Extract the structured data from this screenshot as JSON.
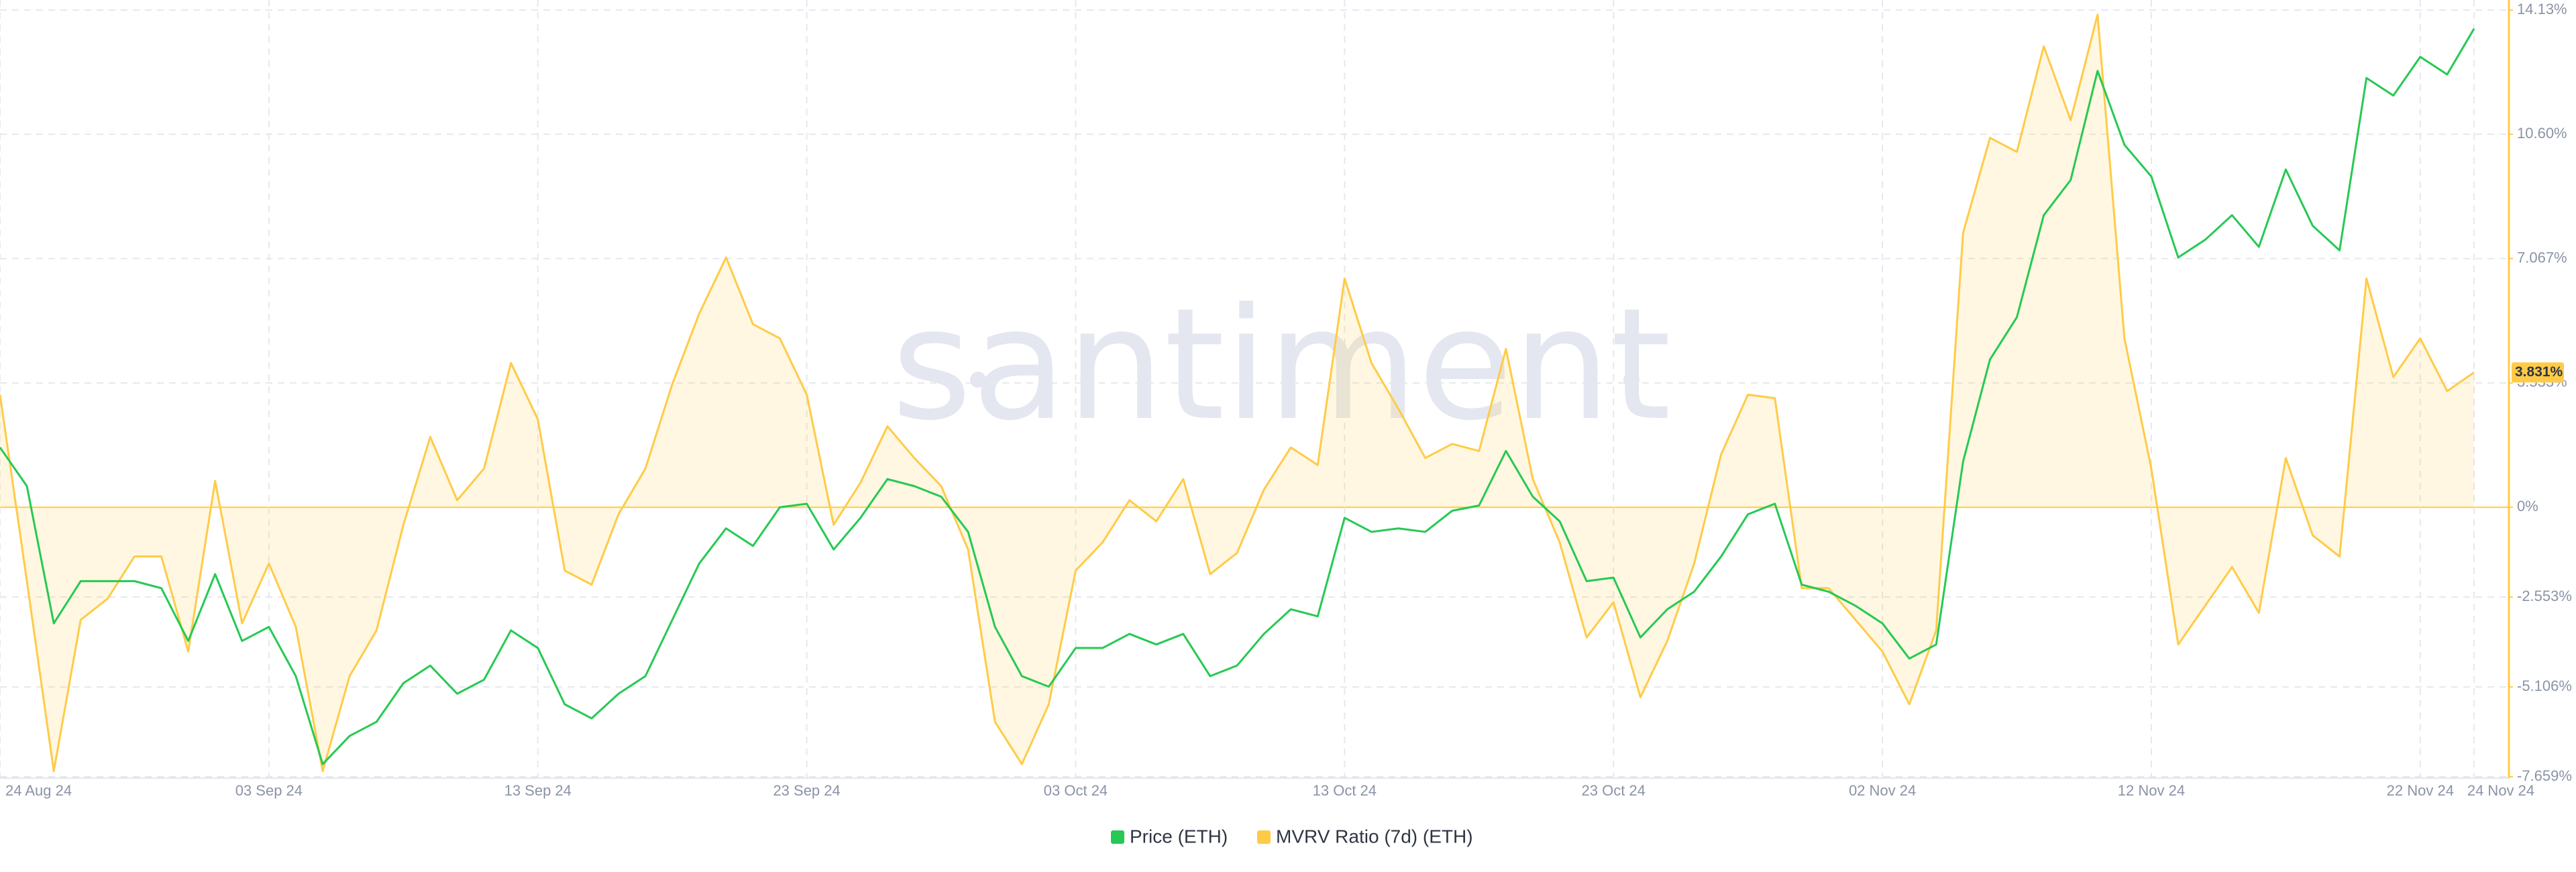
{
  "chart_data": {
    "type": "line",
    "watermark": "santiment",
    "x": [
      "2024-08-24",
      "2024-08-25",
      "2024-08-26",
      "2024-08-27",
      "2024-08-28",
      "2024-08-29",
      "2024-08-30",
      "2024-08-31",
      "2024-09-01",
      "2024-09-02",
      "2024-09-03",
      "2024-09-04",
      "2024-09-05",
      "2024-09-06",
      "2024-09-07",
      "2024-09-08",
      "2024-09-09",
      "2024-09-10",
      "2024-09-11",
      "2024-09-12",
      "2024-09-13",
      "2024-09-14",
      "2024-09-15",
      "2024-09-16",
      "2024-09-17",
      "2024-09-18",
      "2024-09-19",
      "2024-09-20",
      "2024-09-21",
      "2024-09-22",
      "2024-09-23",
      "2024-09-24",
      "2024-09-25",
      "2024-09-26",
      "2024-09-27",
      "2024-09-28",
      "2024-09-29",
      "2024-09-30",
      "2024-10-01",
      "2024-10-02",
      "2024-10-03",
      "2024-10-04",
      "2024-10-05",
      "2024-10-06",
      "2024-10-07",
      "2024-10-08",
      "2024-10-09",
      "2024-10-10",
      "2024-10-11",
      "2024-10-12",
      "2024-10-13",
      "2024-10-14",
      "2024-10-15",
      "2024-10-16",
      "2024-10-17",
      "2024-10-18",
      "2024-10-19",
      "2024-10-20",
      "2024-10-21",
      "2024-10-22",
      "2024-10-23",
      "2024-10-24",
      "2024-10-25",
      "2024-10-26",
      "2024-10-27",
      "2024-10-28",
      "2024-10-29",
      "2024-10-30",
      "2024-10-31",
      "2024-11-01",
      "2024-11-02",
      "2024-11-03",
      "2024-11-04",
      "2024-11-05",
      "2024-11-06",
      "2024-11-07",
      "2024-11-08",
      "2024-11-09",
      "2024-11-10",
      "2024-11-11",
      "2024-11-12",
      "2024-11-13",
      "2024-11-14",
      "2024-11-15",
      "2024-11-16",
      "2024-11-17",
      "2024-11-18",
      "2024-11-19",
      "2024-11-20",
      "2024-11-21",
      "2024-11-22",
      "2024-11-23",
      "2024-11-24"
    ],
    "series": [
      {
        "name": "Price (ETH)",
        "color": "#26c953",
        "values": [
          1.7,
          0.6,
          -3.3,
          -2.1,
          -2.1,
          -2.1,
          -2.3,
          -3.8,
          -1.9,
          -3.8,
          -3.4,
          -4.8,
          -7.3,
          -6.5,
          -6.1,
          -5.0,
          -4.5,
          -5.3,
          -4.9,
          -3.5,
          -4.0,
          -5.6,
          -6.0,
          -5.3,
          -4.8,
          -3.2,
          -1.6,
          -0.6,
          -1.1,
          0,
          0.1,
          -1.2,
          -0.3,
          0.8,
          0.6,
          0.3,
          -0.7,
          -3.4,
          -4.8,
          -5.1,
          -4.0,
          -4.0,
          -3.6,
          -3.9,
          -3.6,
          -4.8,
          -4.5,
          -3.6,
          -2.9,
          -3.1,
          -0.3,
          -0.7,
          -0.6,
          -0.7,
          -0.1,
          0.05,
          1.6,
          0.3,
          -0.4,
          -2.1,
          -2.0,
          -3.7,
          -2.9,
          -2.4,
          -1.4,
          -0.2,
          0.1,
          -2.2,
          -2.4,
          -2.8,
          -3.3,
          -4.3,
          -3.9,
          1.3,
          4.2,
          5.4,
          8.3,
          9.3,
          12.4,
          10.3,
          9.4,
          7.1,
          7.6,
          8.3,
          7.4,
          9.6,
          8.0,
          7.3,
          12.2,
          11.7,
          12.8,
          12.3,
          13.6
        ]
      },
      {
        "name": "MVRV Ratio (7d) (ETH)",
        "color": "#ffcb47",
        "values": [
          3.2,
          -2.1,
          -7.5,
          -3.2,
          -2.6,
          -1.4,
          -1.4,
          -4.1,
          0.75,
          -3.3,
          -1.6,
          -3.4,
          -7.5,
          -4.8,
          -3.5,
          -0.5,
          2.0,
          0.2,
          1.1,
          4.1,
          2.5,
          -1.8,
          -2.2,
          -0.2,
          1.1,
          3.5,
          5.5,
          7.1,
          5.2,
          4.8,
          3.2,
          -0.5,
          0.7,
          2.3,
          1.4,
          0.6,
          -1.2,
          -6.1,
          -7.3,
          -5.6,
          -1.8,
          -1.0,
          0.2,
          -0.4,
          0.8,
          -1.9,
          -1.3,
          0.5,
          1.7,
          1.2,
          6.5,
          4.1,
          2.8,
          1.4,
          1.8,
          1.6,
          4.5,
          0.8,
          -1.0,
          -3.7,
          -2.7,
          -5.4,
          -3.8,
          -1.6,
          1.5,
          3.2,
          3.1,
          -2.3,
          -2.3,
          -3.2,
          -4.1,
          -5.6,
          -3.5,
          7.8,
          10.5,
          10.1,
          13.1,
          11.0,
          14.0,
          4.8,
          1.1,
          -3.9,
          -2.8,
          -1.7,
          -3.0,
          1.4,
          -0.8,
          -1.4,
          6.5,
          3.7,
          4.8,
          3.3,
          3.831
        ],
        "value_labels": [
          null,
          null,
          null,
          null,
          null,
          null,
          null,
          null,
          null,
          null,
          null,
          null,
          null,
          null,
          null,
          null,
          null,
          null,
          null,
          null,
          null,
          null,
          null,
          null,
          null,
          null,
          null,
          null,
          null,
          null,
          null,
          null,
          null,
          null,
          null,
          null,
          null,
          null,
          null,
          null,
          null,
          null,
          null,
          null,
          null,
          null,
          null,
          null,
          null,
          null,
          null,
          null,
          null,
          null,
          null,
          null,
          null,
          null,
          null,
          null,
          null,
          null,
          null,
          null,
          null,
          null,
          null,
          null,
          null,
          null,
          null,
          null,
          null,
          null,
          null,
          null,
          null,
          null,
          null,
          null,
          null,
          null,
          null,
          null,
          null,
          null,
          null,
          null,
          null,
          null,
          null,
          null,
          "3.831%"
        ],
        "area": true
      }
    ],
    "xticks": [
      {
        "value": "2024-08-24",
        "label": "24 Aug 24"
      },
      {
        "value": "2024-09-03",
        "label": "03 Sep 24"
      },
      {
        "value": "2024-09-13",
        "label": "13 Sep 24"
      },
      {
        "value": "2024-09-23",
        "label": "23 Sep 24"
      },
      {
        "value": "2024-10-03",
        "label": "03 Oct 24"
      },
      {
        "value": "2024-10-13",
        "label": "13 Oct 24"
      },
      {
        "value": "2024-10-23",
        "label": "23 Oct 24"
      },
      {
        "value": "2024-11-02",
        "label": "02 Nov 24"
      },
      {
        "value": "2024-11-12",
        "label": "12 Nov 24"
      },
      {
        "value": "2024-11-22",
        "label": "22 Nov 24"
      },
      {
        "value": "2024-11-24",
        "label": "24 Nov 24"
      }
    ],
    "ylim": [
      -7.659,
      14.13
    ],
    "yticks": [
      {
        "value": 14.13,
        "label": "14.13%"
      },
      {
        "value": 10.6,
        "label": "10.60%"
      },
      {
        "value": 7.067,
        "label": "7.067%"
      },
      {
        "value": 3.533,
        "label": "3.533%"
      },
      {
        "value": 0,
        "label": "0%"
      },
      {
        "value": -2.553,
        "label": "-2.553%"
      },
      {
        "value": -5.106,
        "label": "-5.106%"
      },
      {
        "value": -7.659,
        "label": "-7.659%"
      }
    ],
    "grid": true
  }
}
